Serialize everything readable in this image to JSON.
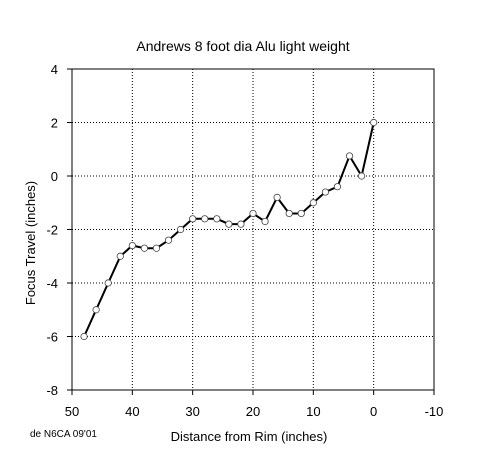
{
  "chart_data": {
    "type": "line",
    "title": "Andrews 8 foot dia Alu light weight",
    "xlabel": "Distance from Rim (inches)",
    "ylabel": "Focus Travel (inches)",
    "x_reversed": true,
    "xlim": [
      50,
      -10
    ],
    "ylim": [
      -8,
      4
    ],
    "x_ticks": [
      50,
      40,
      30,
      20,
      10,
      0,
      -10
    ],
    "y_ticks": [
      4,
      2,
      0,
      -2,
      -4,
      -6,
      -8
    ],
    "x_tick_labels": [
      "50",
      "40",
      "30",
      "20",
      "10",
      "0",
      "-10"
    ],
    "y_tick_labels": [
      "4",
      "2",
      "0",
      "-2",
      "-4",
      "-6",
      "-8"
    ],
    "grid": true,
    "marker": "open-circle",
    "line_color": "#000000",
    "series": [
      {
        "x": [
          48,
          46,
          44,
          42,
          40,
          38,
          36,
          34,
          32,
          30,
          28,
          26,
          24,
          22,
          20,
          18,
          16,
          14,
          12,
          10,
          8,
          6,
          4,
          2,
          0
        ],
        "y": [
          -6.0,
          -5.0,
          -4.0,
          -3.0,
          -2.6,
          -2.7,
          -2.7,
          -2.4,
          -2.0,
          -1.6,
          -1.6,
          -1.6,
          -1.8,
          -1.8,
          -1.4,
          -1.7,
          -0.8,
          -1.4,
          -1.4,
          -1.0,
          -0.6,
          -0.4,
          0.75,
          0.0,
          2.0
        ]
      }
    ]
  },
  "credit": "de N6CA 09'01"
}
